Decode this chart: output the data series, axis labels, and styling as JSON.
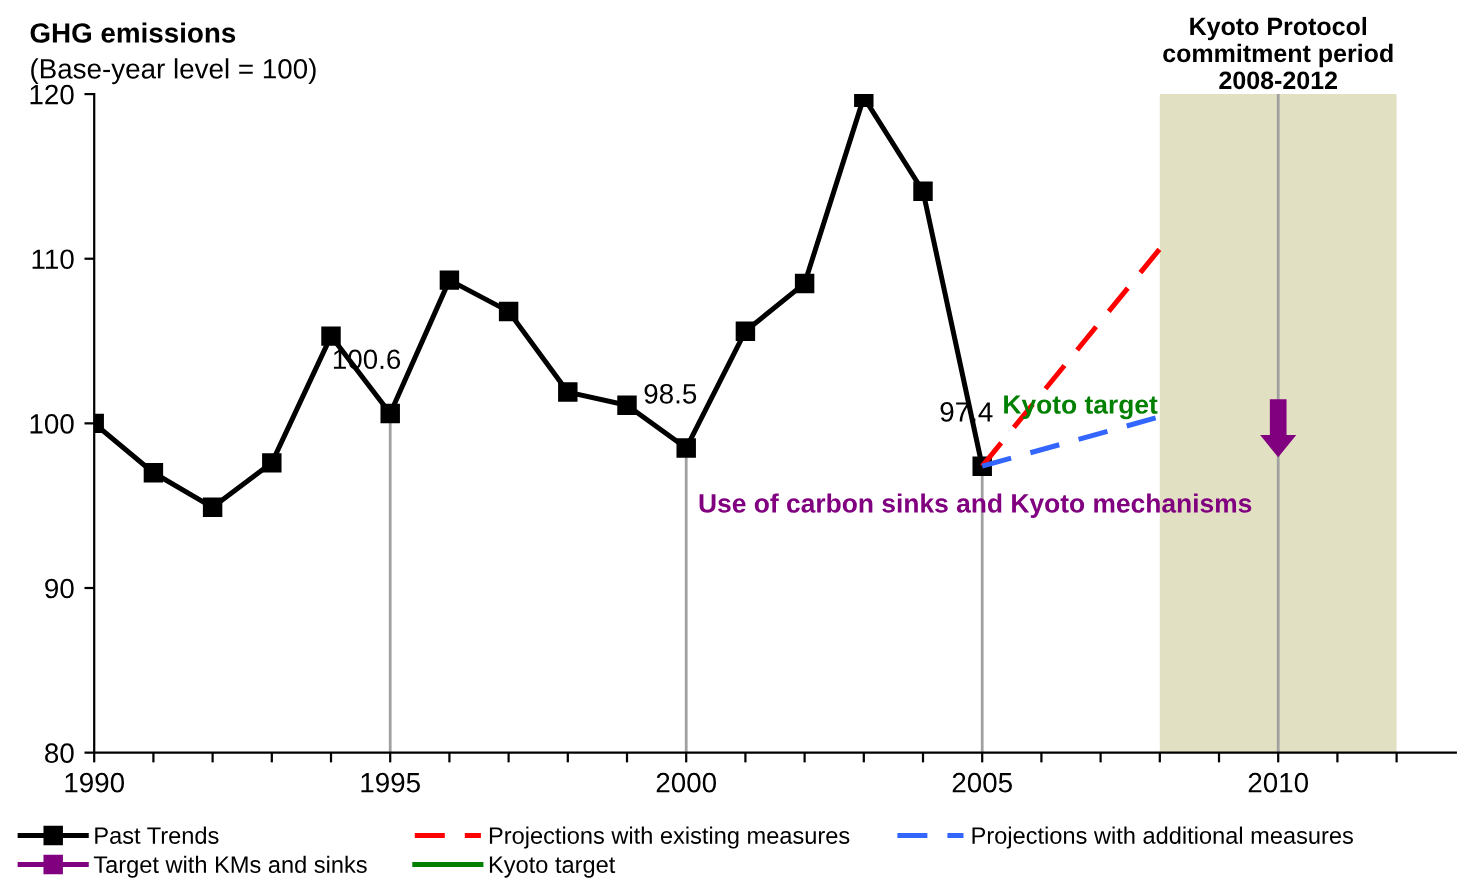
{
  "chart_data": {
    "type": "line",
    "title": "GHG emissions",
    "subtitle": "(Base-year level = 100)",
    "series": [
      {
        "name": "Past Trends",
        "color": "#000000",
        "marker": "square",
        "line_style": "solid",
        "x": [
          1990,
          1991,
          1992,
          1993,
          1994,
          1995,
          1996,
          1997,
          1998,
          1999,
          2000,
          2001,
          2002,
          2003,
          2004,
          2005
        ],
        "values": [
          100,
          97.0,
          94.9,
          97.6,
          105.3,
          100.6,
          108.7,
          106.8,
          101.9,
          101.1,
          98.5,
          105.6,
          108.5,
          119.8,
          114.1,
          97.4
        ],
        "value_labels": [
          null,
          null,
          null,
          null,
          null,
          "100.6",
          null,
          null,
          null,
          null,
          "98.5",
          null,
          null,
          null,
          null,
          "97.4"
        ]
      },
      {
        "name": "Projections with existing measures",
        "color": "#ff0000",
        "marker": "none",
        "line_style": "dashed",
        "x": [
          2005,
          2008
        ],
        "values": [
          97.4,
          110.6
        ]
      },
      {
        "name": "Projections with additional measures",
        "color": "#3366ff",
        "marker": "none",
        "line_style": "dashed",
        "x": [
          2005,
          2008
        ],
        "values": [
          97.4,
          100.4
        ]
      },
      {
        "name": "Target with KMs and sinks",
        "type": "other",
        "color": "#800080"
      },
      {
        "name": "Kyoto target",
        "color": "#008000",
        "marker": "none",
        "line_style": "solid"
      }
    ],
    "annotations": [
      "Kyoto target",
      "Use of carbon sinks and Kyoto mechanisms"
    ],
    "bands": [
      {
        "axis": "x",
        "from": 2008,
        "to": 2012,
        "label": "Kyoto Protocol\ncommitment period\n2008-2012",
        "color": "#e2e0c2"
      }
    ],
    "ref_lines": [
      {
        "axis": "x",
        "value": 1995
      },
      {
        "axis": "x",
        "value": 2000
      },
      {
        "axis": "x",
        "value": 2005
      },
      {
        "axis": "x",
        "value": 2010
      }
    ],
    "xlim": [
      1990,
      2013
    ],
    "xticks": [
      1990,
      {
        "value": 1991,
        "label": null
      },
      {
        "value": 1992,
        "label": null
      },
      {
        "value": 1993,
        "label": null
      },
      {
        "value": 1994,
        "label": null
      },
      1995,
      {
        "value": 1996,
        "label": null
      },
      {
        "value": 1997,
        "label": null
      },
      {
        "value": 1998,
        "label": null
      },
      {
        "value": 1999,
        "label": null
      },
      2000,
      {
        "value": 2001,
        "label": null
      },
      {
        "value": 2002,
        "label": null
      },
      {
        "value": 2003,
        "label": null
      },
      {
        "value": 2004,
        "label": null
      },
      2005,
      {
        "value": 2006,
        "label": null
      },
      {
        "value": 2007,
        "label": null
      },
      {
        "value": 2008,
        "label": null
      },
      {
        "value": 2009,
        "label": null
      },
      2010,
      {
        "value": 2011,
        "label": null
      },
      {
        "value": 2012,
        "label": null
      }
    ],
    "ylim": [
      80,
      120
    ],
    "yticks": [
      80,
      90,
      100,
      110,
      120
    ],
    "grid": false,
    "legend": "bottom"
  }
}
